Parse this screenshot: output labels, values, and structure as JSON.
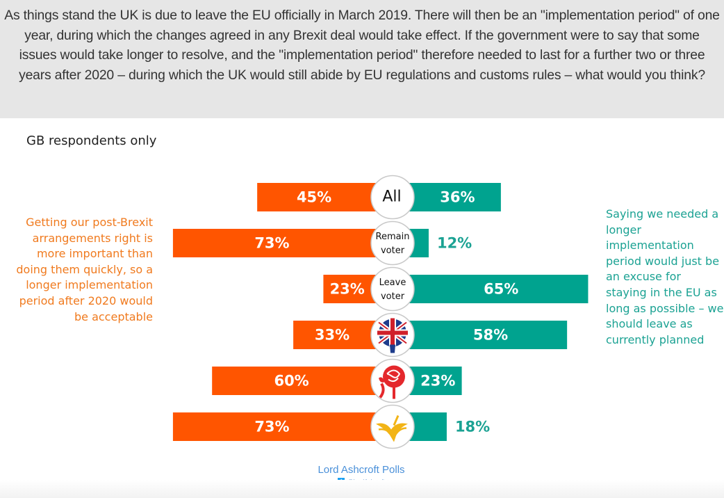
{
  "question": "As things stand the UK is due to leave the EU officially in March 2019. There will then be an \"implementation period\" of one year, during which the changes agreed in any Brexit deal would take effect. If the government were to say that some issues would take longer to resolve, and the \"implementation period\" therefore needed to last for a further two or three years after 2020 – during which the UK would still abide by EU regulations and customs rules – what would you think?",
  "subtitle": "GB respondents only",
  "colors": {
    "left": "#ff5500",
    "right": "#00a38f",
    "left_text": "#f07a1e",
    "right_text": "#1ba293"
  },
  "footer": {
    "brand": "Lord Ashcroft Polls",
    "handle": "@LordAshcroft",
    "icon": "twitter-icon"
  },
  "chart_data": {
    "type": "bar",
    "orientation": "diverging-horizontal",
    "categories": [
      "All",
      "Remain voter",
      "Leave voter",
      "Conservative",
      "Labour",
      "Liberal Democrat"
    ],
    "category_labels": [
      "All",
      "Remain voter",
      "Leave voter",
      "",
      "",
      ""
    ],
    "category_icons": [
      "",
      "",
      "",
      "union-flag-tree-icon",
      "red-rose-icon",
      "bird-of-liberty-icon"
    ],
    "series": [
      {
        "name": "Getting our post-Brexit arrangements right is more important than doing them quickly, so a longer implementation period after 2020 would be acceptable",
        "side": "left",
        "values": [
          45,
          73,
          23,
          33,
          60,
          73
        ]
      },
      {
        "name": "Saying we needed a longer implementation period would just be an excuse for staying in the EU as long as possible – we should leave as currently planned",
        "side": "right",
        "values": [
          36,
          12,
          65,
          58,
          23,
          18
        ]
      }
    ],
    "value_suffix": "%"
  }
}
